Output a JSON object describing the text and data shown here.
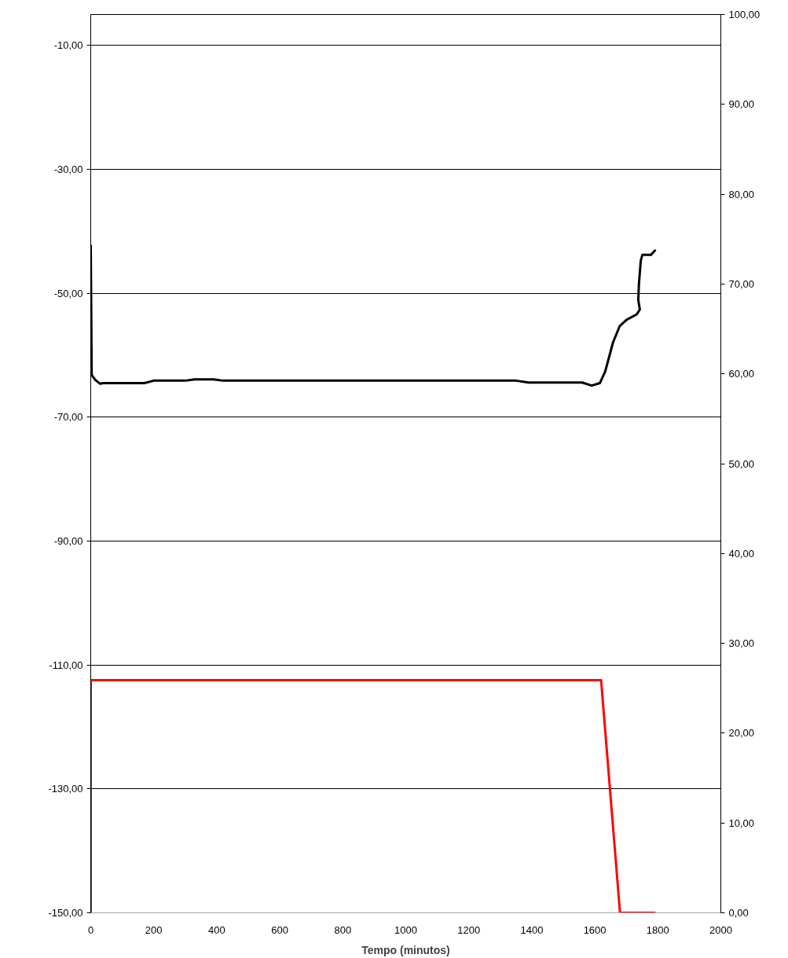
{
  "chart_data": {
    "type": "line",
    "xlabel": "Tempo (minutos)",
    "xlim": [
      0,
      2000
    ],
    "xticks": [
      0,
      200,
      400,
      600,
      800,
      1000,
      1200,
      1400,
      1600,
      1800,
      2000
    ],
    "ylim": [
      -150,
      -5
    ],
    "yticks": [
      {
        "value": -150,
        "label": "-150,00"
      },
      {
        "value": -130,
        "label": "-130,00"
      },
      {
        "value": -110,
        "label": "-110,00"
      },
      {
        "value": -90,
        "label": "-90,00"
      },
      {
        "value": -70,
        "label": "-70,00"
      },
      {
        "value": -50,
        "label": "-50,00"
      },
      {
        "value": -30,
        "label": "-30,00"
      },
      {
        "value": -10,
        "label": "-10,00"
      }
    ],
    "y2lim": [
      0,
      100
    ],
    "y2ticks": [
      {
        "value": 0,
        "label": "0,00"
      },
      {
        "value": 10,
        "label": "10,00"
      },
      {
        "value": 20,
        "label": "20,00"
      },
      {
        "value": 30,
        "label": "30,00"
      },
      {
        "value": 40,
        "label": "40,00"
      },
      {
        "value": 50,
        "label": "50,00"
      },
      {
        "value": 60,
        "label": "60,00"
      },
      {
        "value": 70,
        "label": "70,00"
      },
      {
        "value": 80,
        "label": "80,00"
      },
      {
        "value": 90,
        "label": "90,00"
      },
      {
        "value": 100,
        "label": "100,00"
      }
    ],
    "grid": "y",
    "series": [
      {
        "color": "#000000",
        "x": [
          0,
          3,
          15,
          30,
          40,
          170,
          200,
          300,
          330,
          390,
          420,
          1350,
          1390,
          1560,
          1590,
          1616,
          1633,
          1658,
          1679,
          1700,
          1733,
          1743,
          1738,
          1740,
          1746,
          1751,
          1778,
          1791
        ],
        "values": [
          -42.3,
          -63.2,
          -64.0,
          -64.6,
          -64.5,
          -64.5,
          -64.1,
          -64.1,
          -63.9,
          -63.9,
          -64.1,
          -64.1,
          -64.4,
          -64.4,
          -64.9,
          -64.5,
          -62.6,
          -57.9,
          -55.3,
          -54.3,
          -53.4,
          -52.6,
          -51.1,
          -48.5,
          -44.7,
          -43.8,
          -43.8,
          -43.1
        ]
      },
      {
        "color": "#ff0000",
        "axis": "y2",
        "x": [
          0,
          0,
          1620,
          1680,
          1790
        ],
        "values": [
          0,
          25.9,
          25.9,
          0,
          0
        ]
      }
    ]
  }
}
